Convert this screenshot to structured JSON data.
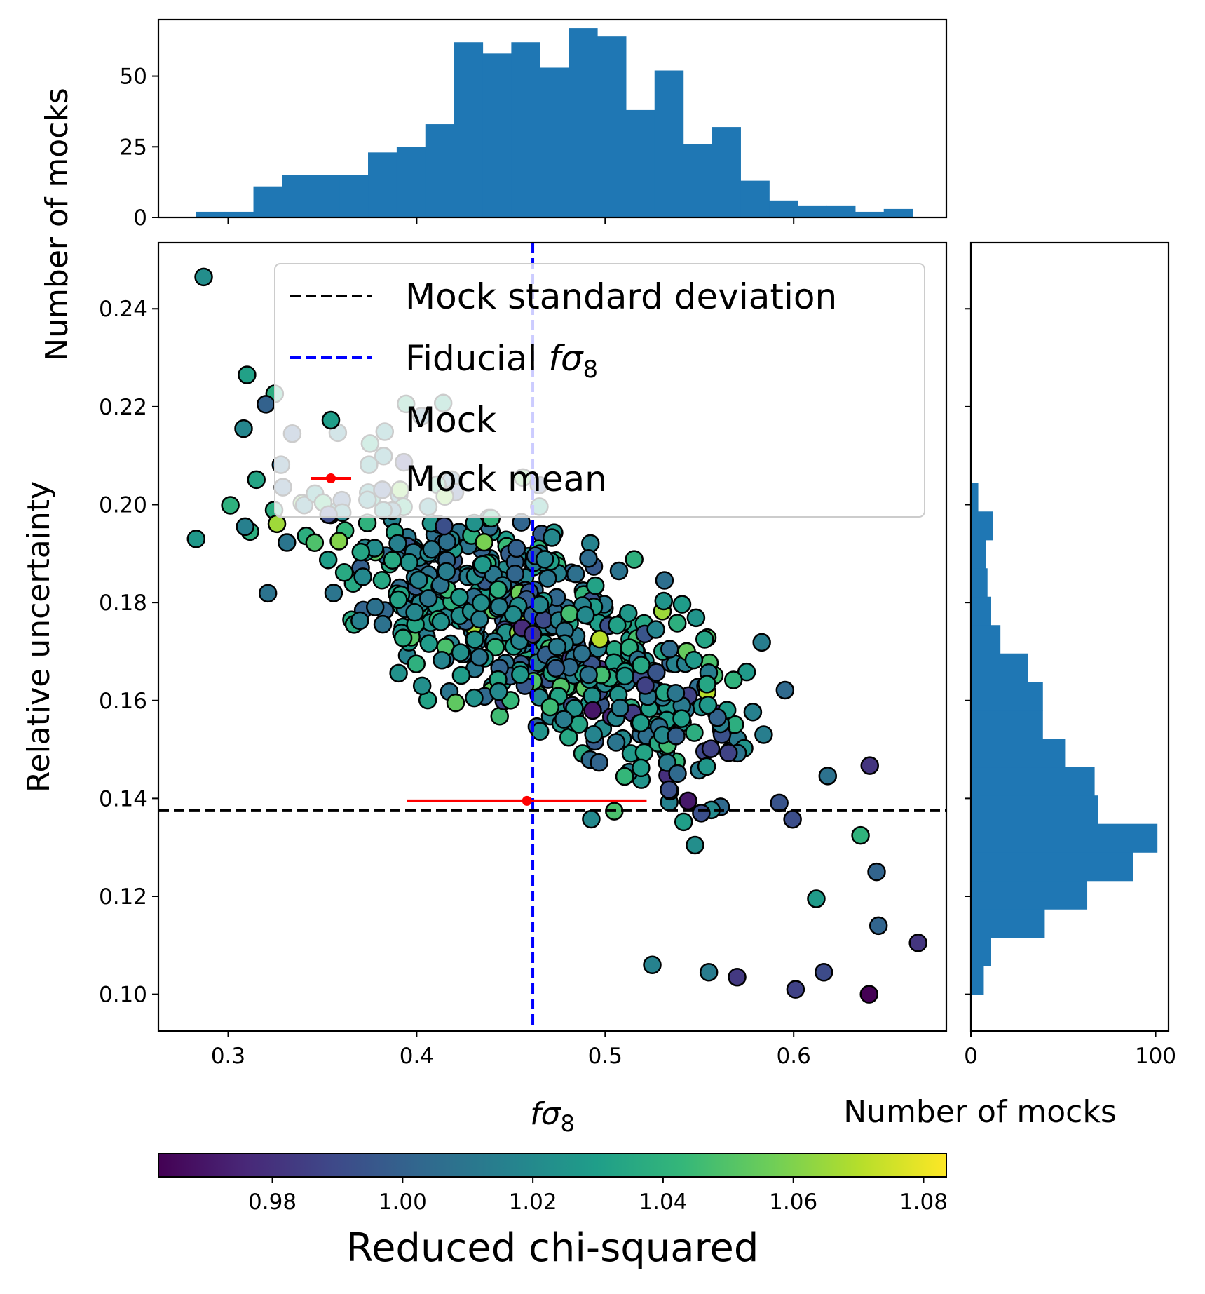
{
  "chart_data": [
    {
      "id": "main-scatter",
      "type": "scatter",
      "xlabel_base": "fσ",
      "xlabel_sub": "8",
      "ylabel": "Relative uncertainty",
      "xlim": [
        0.263,
        0.681
      ],
      "ylim": [
        0.0925,
        0.2535
      ],
      "xticks": [
        0.3,
        0.4,
        0.5,
        0.6
      ],
      "xtick_labels": [
        "0.3",
        "0.4",
        "0.5",
        "0.6"
      ],
      "yticks": [
        0.1,
        0.12,
        0.14,
        0.16,
        0.18,
        0.2,
        0.22,
        0.24
      ],
      "ytick_labels": [
        "0.10",
        "0.12",
        "0.14",
        "0.16",
        "0.18",
        "0.20",
        "0.22",
        "0.24"
      ],
      "mock_std_y": 0.1375,
      "fiducial_x": 0.4616,
      "mock_mean": {
        "x": 0.4585,
        "y": 0.1395,
        "xerr_low": 0.395,
        "xerr_high": 0.522
      },
      "legend": {
        "location": "upper-right",
        "entries": [
          "Mock standard deviation",
          "Fiducial ",
          "Mock",
          "Mock mean"
        ],
        "fiducial_math_base": "fσ",
        "fiducial_math_sub": "8"
      },
      "points_approx": "~600 mock points following a downward trend; mean y ≈ 0.2085 − 0.185·(x − 0.28) with scatter ≈ 0.012",
      "sample_points": [
        {
          "x": 0.287,
          "y": 0.2465
        },
        {
          "x": 0.31,
          "y": 0.2265
        },
        {
          "x": 0.32,
          "y": 0.2205
        },
        {
          "x": 0.283,
          "y": 0.193
        },
        {
          "x": 0.309,
          "y": 0.1955
        },
        {
          "x": 0.334,
          "y": 0.2145
        },
        {
          "x": 0.544,
          "y": 0.1395
        },
        {
          "x": 0.551,
          "y": 0.137
        },
        {
          "x": 0.612,
          "y": 0.1195
        },
        {
          "x": 0.644,
          "y": 0.125
        },
        {
          "x": 0.645,
          "y": 0.114
        },
        {
          "x": 0.666,
          "y": 0.1105
        },
        {
          "x": 0.64,
          "y": 0.1
        },
        {
          "x": 0.601,
          "y": 0.101
        },
        {
          "x": 0.525,
          "y": 0.106
        },
        {
          "x": 0.57,
          "y": 0.1035
        },
        {
          "x": 0.555,
          "y": 0.1045
        },
        {
          "x": 0.616,
          "y": 0.1045
        }
      ]
    },
    {
      "id": "top-histogram",
      "type": "bar",
      "ylabel": "Number of mocks",
      "ylim": [
        0,
        70
      ],
      "yticks": [
        0,
        25,
        50
      ],
      "ytick_labels": [
        "0",
        "25",
        "50"
      ],
      "bin_edges": [
        0.283,
        0.2982,
        0.3134,
        0.3286,
        0.3438,
        0.359,
        0.3742,
        0.3894,
        0.4046,
        0.4198,
        0.435,
        0.4502,
        0.4654,
        0.4806,
        0.4958,
        0.511,
        0.5262,
        0.5414,
        0.5566,
        0.5718,
        0.587,
        0.6022,
        0.6174,
        0.6326,
        0.6478,
        0.663
      ],
      "counts": [
        2,
        2,
        11,
        15,
        15,
        15,
        23,
        25,
        33,
        62,
        58,
        62,
        53,
        67,
        64,
        38,
        52,
        26,
        32,
        13,
        6,
        4,
        4,
        2,
        3,
        1
      ]
    },
    {
      "id": "right-histogram",
      "type": "bar",
      "orientation": "horizontal",
      "xlabel": "Number of mocks",
      "xlim": [
        0,
        107
      ],
      "xticks": [
        0,
        100
      ],
      "xtick_labels": [
        "0",
        "100"
      ],
      "bin_edges": [
        0.1,
        0.1058,
        0.1116,
        0.1174,
        0.1232,
        0.129,
        0.1348,
        0.1406,
        0.1464,
        0.1522,
        0.158,
        0.1638,
        0.1696,
        0.1754,
        0.1812,
        0.187,
        0.1928,
        0.1986,
        0.2044,
        0.2102,
        0.216,
        0.2218
      ],
      "counts": [
        7,
        11,
        40,
        63,
        88,
        101,
        69,
        67,
        51,
        39,
        39,
        31,
        16,
        11,
        9,
        8,
        12,
        4,
        0,
        0,
        0,
        2
      ]
    }
  ],
  "colorbar": {
    "label": "Reduced chi-squared",
    "colormap": "viridis",
    "range": [
      0.9625,
      1.0835
    ],
    "ticks": [
      0.98,
      1.0,
      1.02,
      1.04,
      1.06,
      1.08
    ],
    "tick_labels": [
      "0.98",
      "1.00",
      "1.02",
      "1.04",
      "1.06",
      "1.08"
    ],
    "stops": [
      "#440154",
      "#482878",
      "#3e4989",
      "#31688e",
      "#26828e",
      "#1f9e89",
      "#35b779",
      "#6ece58",
      "#b5de2b",
      "#fde725"
    ]
  },
  "colors": {
    "bar": "#1f77b4",
    "std_line": "#000000",
    "fiducial_line": "#0000ff",
    "mean_marker": "#ff0000"
  }
}
